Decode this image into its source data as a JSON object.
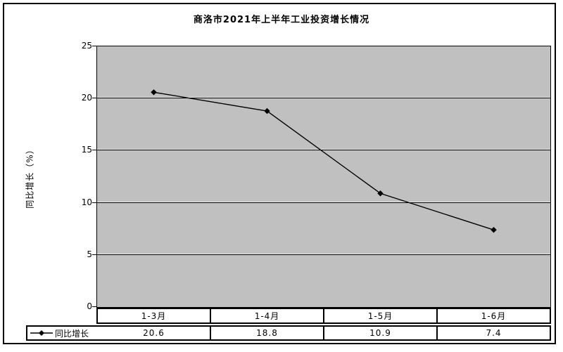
{
  "chart_data": {
    "type": "line",
    "title": "商洛市2021年上半年工业投资增长情况",
    "ylabel": "同比增长（%）",
    "categories": [
      "1-3月",
      "1-4月",
      "1-5月",
      "1-6月"
    ],
    "series": [
      {
        "name": "同比增长",
        "values": [
          20.6,
          18.8,
          10.9,
          7.4
        ]
      }
    ],
    "value_row_labels": [
      "20.6",
      "18.8",
      "10.9",
      "7.4"
    ],
    "ylim": [
      0,
      25
    ],
    "yticks": [
      0,
      5,
      10,
      15,
      20,
      25
    ],
    "grid": true,
    "legend_position": "table-bottom-left",
    "marker": "diamond",
    "colors": {
      "plot_bg": "#c0c0c0",
      "line": "#000000",
      "marker": "#000000",
      "grid": "#000000",
      "frame_border": "#000000",
      "background": "#ffffff"
    }
  }
}
